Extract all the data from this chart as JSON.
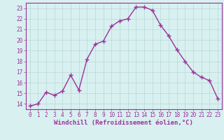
{
  "x": [
    0,
    1,
    2,
    3,
    4,
    5,
    6,
    7,
    8,
    9,
    10,
    11,
    12,
    13,
    14,
    15,
    16,
    17,
    18,
    19,
    20,
    21,
    22,
    23
  ],
  "y": [
    13.8,
    14.0,
    15.1,
    14.8,
    15.2,
    16.7,
    15.3,
    18.2,
    19.6,
    19.9,
    21.3,
    21.8,
    22.0,
    23.1,
    23.1,
    22.8,
    21.4,
    20.4,
    19.1,
    18.0,
    17.0,
    16.5,
    16.2,
    14.5
  ],
  "line_color": "#993399",
  "marker": "+",
  "marker_size": 4,
  "marker_linewidth": 1.0,
  "background_color": "#d8f0f0",
  "grid_color": "#b8d8d8",
  "xlabel": "Windchill (Refroidissement éolien,°C)",
  "ylabel": "",
  "xlim": [
    -0.5,
    23.5
  ],
  "ylim": [
    13.5,
    23.5
  ],
  "yticks": [
    14,
    15,
    16,
    17,
    18,
    19,
    20,
    21,
    22,
    23
  ],
  "xticks": [
    0,
    1,
    2,
    3,
    4,
    5,
    6,
    7,
    8,
    9,
    10,
    11,
    12,
    13,
    14,
    15,
    16,
    17,
    18,
    19,
    20,
    21,
    22,
    23
  ],
  "tick_label_color": "#993399",
  "axis_color": "#993399",
  "xlabel_color": "#993399",
  "xlabel_fontsize": 6.5,
  "tick_fontsize": 5.5,
  "linewidth": 1.0
}
